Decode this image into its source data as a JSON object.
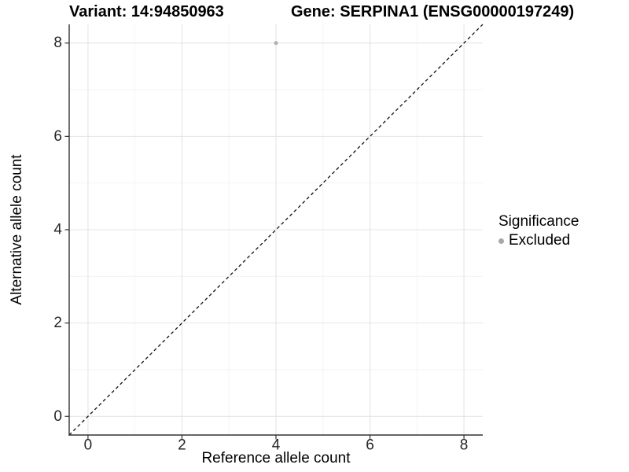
{
  "chart_data": {
    "type": "scatter",
    "titles": {
      "left": "Variant: 14:94850963",
      "right": "Gene: SERPINA1 (ENSG00000197249)"
    },
    "xlabel": "Reference allele count",
    "ylabel": "Alternative allele count",
    "xlim": [
      -0.4,
      8.4
    ],
    "ylim": [
      -0.4,
      8.4
    ],
    "xticks": [
      0,
      2,
      4,
      6,
      8
    ],
    "yticks": [
      0,
      2,
      4,
      6,
      8
    ],
    "minor_xticks": [
      1,
      3,
      5,
      7
    ],
    "minor_yticks": [
      1,
      3,
      5,
      7
    ],
    "grid": {
      "major_color": "#e4e4e4",
      "minor_color": "#f1f1f1"
    },
    "axis_color": "#333333",
    "tick_label_color": "#262626",
    "series": [
      {
        "name": "Excluded",
        "color": "#b0b0b0",
        "points": [
          {
            "x": 4,
            "y": 8
          }
        ]
      }
    ],
    "reference_line": {
      "kind": "identity y = x",
      "style": "dashed",
      "color": "#111111"
    },
    "legend": {
      "title": "Significance",
      "position": "right",
      "items": [
        {
          "label": "Excluded",
          "color": "#a8a8a8"
        }
      ]
    }
  }
}
